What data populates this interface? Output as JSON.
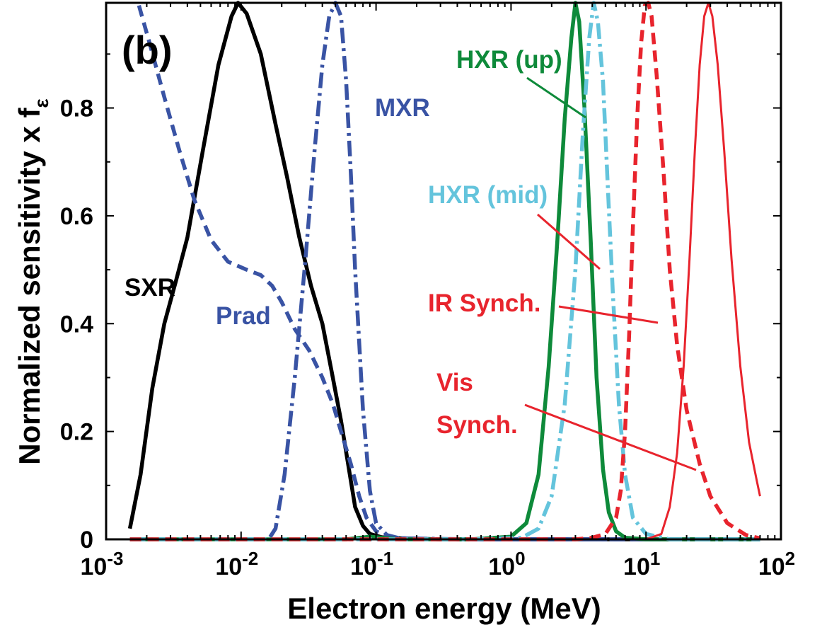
{
  "chart_data": {
    "type": "line",
    "panel_label": "(b)",
    "xlabel": "Electron energy (MeV)",
    "ylabel_main": "Normalized sensitivity x f",
    "ylabel_sub": "ε",
    "x_scale": "log",
    "xlim": [
      0.001,
      100
    ],
    "ylim": [
      0,
      1
    ],
    "x_ticks": [
      {
        "value": 0.001,
        "base": "10",
        "exp": "-3"
      },
      {
        "value": 0.01,
        "base": "10",
        "exp": "-2"
      },
      {
        "value": 0.1,
        "base": "10",
        "exp": "-1"
      },
      {
        "value": 1,
        "base": "10",
        "exp": "0"
      },
      {
        "value": 10,
        "base": "10",
        "exp": "1"
      },
      {
        "value": 100,
        "base": "10",
        "exp": "2"
      }
    ],
    "y_ticks": [
      {
        "value": 0,
        "label": "0"
      },
      {
        "value": 0.2,
        "label": "0.2"
      },
      {
        "value": 0.4,
        "label": "0.4"
      },
      {
        "value": 0.6,
        "label": "0.6"
      },
      {
        "value": 0.8,
        "label": "0.8"
      }
    ],
    "grid": false,
    "series": [
      {
        "name": "SXR",
        "color": "#000000",
        "dash": "solid",
        "x": [
          0.0015,
          0.0018,
          0.0022,
          0.0027,
          0.0033,
          0.004,
          0.0052,
          0.0068,
          0.0085,
          0.0095,
          0.011,
          0.014,
          0.018,
          0.022,
          0.027,
          0.033,
          0.04,
          0.047,
          0.055,
          0.063,
          0.07,
          0.08,
          0.09,
          0.11,
          0.15,
          0.3,
          1,
          5,
          70
        ],
        "y": [
          0.02,
          0.12,
          0.28,
          0.4,
          0.48,
          0.56,
          0.72,
          0.88,
          0.97,
          0.995,
          0.975,
          0.9,
          0.77,
          0.67,
          0.56,
          0.47,
          0.4,
          0.31,
          0.22,
          0.13,
          0.06,
          0.025,
          0.01,
          0.004,
          0.002,
          0.0,
          0.0,
          0.0,
          0.0
        ]
      },
      {
        "name": "Prad",
        "color": "#3953a4",
        "dash": "dashed",
        "x": [
          0.00175,
          0.0021,
          0.0027,
          0.0035,
          0.0045,
          0.006,
          0.008,
          0.011,
          0.014,
          0.017,
          0.02,
          0.025,
          0.032,
          0.04,
          0.048,
          0.055,
          0.065,
          0.075,
          0.085,
          0.1,
          0.12,
          0.15,
          0.3,
          1,
          10,
          70
        ],
        "y": [
          0.99,
          0.92,
          0.82,
          0.72,
          0.63,
          0.555,
          0.515,
          0.5,
          0.49,
          0.47,
          0.44,
          0.39,
          0.35,
          0.3,
          0.25,
          0.2,
          0.14,
          0.08,
          0.04,
          0.015,
          0.005,
          0.002,
          0.0,
          0.0,
          0.0,
          0.0
        ]
      },
      {
        "name": "MXR",
        "color": "#3953a4",
        "dash": "dashdot",
        "x": [
          0.0015,
          0.005,
          0.01,
          0.016,
          0.018,
          0.021,
          0.025,
          0.03,
          0.035,
          0.04,
          0.045,
          0.05,
          0.055,
          0.06,
          0.065,
          0.07,
          0.08,
          0.09,
          0.1,
          0.12,
          0.15,
          0.5,
          70
        ],
        "y": [
          0.0,
          0.0,
          0.0,
          0.0,
          0.02,
          0.12,
          0.3,
          0.52,
          0.72,
          0.88,
          0.97,
          0.995,
          0.97,
          0.85,
          0.68,
          0.5,
          0.24,
          0.09,
          0.03,
          0.008,
          0.002,
          0.0,
          0.0
        ]
      },
      {
        "name": "HXR (up)",
        "color": "#0e8a3a",
        "dash": "solid",
        "x": [
          0.0015,
          0.06,
          0.09,
          0.15,
          0.5,
          1.0,
          1.3,
          1.6,
          1.9,
          2.2,
          2.5,
          2.8,
          3.0,
          3.2,
          3.5,
          3.9,
          4.3,
          4.8,
          5.3,
          6,
          7,
          10,
          70
        ],
        "y": [
          0.0,
          0.0,
          0.005,
          0.0,
          0.0,
          0.005,
          0.03,
          0.12,
          0.32,
          0.55,
          0.78,
          0.93,
          0.995,
          0.96,
          0.8,
          0.55,
          0.3,
          0.13,
          0.05,
          0.015,
          0.003,
          0.0,
          0.0
        ]
      },
      {
        "name": "HXR (mid)",
        "color": "#64c4dc",
        "dash": "dashdot",
        "x": [
          0.0015,
          0.5,
          1.2,
          1.6,
          2.0,
          2.5,
          3.0,
          3.4,
          3.8,
          4.1,
          4.4,
          4.8,
          5.2,
          5.7,
          6.3,
          7,
          8,
          10,
          15,
          70
        ],
        "y": [
          0.0,
          0.0,
          0.003,
          0.02,
          0.08,
          0.25,
          0.5,
          0.75,
          0.93,
          0.995,
          0.96,
          0.85,
          0.66,
          0.45,
          0.25,
          0.12,
          0.04,
          0.01,
          0.0,
          0.0
        ]
      },
      {
        "name": "IR Synch.",
        "color": "#e8242d",
        "dash": "dashed",
        "x": [
          0.0015,
          3,
          4,
          5,
          6,
          6.5,
          7,
          7.5,
          8,
          8.6,
          9.2,
          9.8,
          10.4,
          11,
          12,
          13.5,
          15,
          17,
          20,
          25,
          30,
          40,
          55,
          70
        ],
        "y": [
          0.0,
          0.0,
          0.003,
          0.01,
          0.04,
          0.09,
          0.2,
          0.38,
          0.58,
          0.78,
          0.92,
          0.99,
          0.995,
          0.97,
          0.86,
          0.68,
          0.5,
          0.36,
          0.24,
          0.14,
          0.08,
          0.03,
          0.008,
          0.002
        ]
      },
      {
        "name": "Vis Synch.",
        "color": "#e8242d",
        "dash": "solid",
        "x": [
          0.0015,
          10,
          13,
          15,
          17,
          19,
          21,
          23,
          25,
          27,
          29,
          31,
          34,
          38,
          43,
          50,
          58,
          66,
          70
        ],
        "y": [
          0.0,
          0.0,
          0.01,
          0.06,
          0.16,
          0.32,
          0.52,
          0.72,
          0.88,
          0.97,
          0.995,
          0.97,
          0.88,
          0.72,
          0.52,
          0.32,
          0.18,
          0.11,
          0.08
        ]
      }
    ],
    "annotations": [
      {
        "text": "SXR",
        "color": "#000000"
      },
      {
        "text": "Prad",
        "color": "#3953a4"
      },
      {
        "text": "MXR",
        "color": "#3953a4"
      },
      {
        "text": "HXR (up)",
        "color": "#0e8a3a"
      },
      {
        "text": "HXR (mid)",
        "color": "#64c4dc"
      },
      {
        "text": "IR Synch.",
        "color": "#e8242d"
      },
      {
        "text": "Vis",
        "color": "#e8242d"
      },
      {
        "text": "Synch.",
        "color": "#e8242d"
      }
    ]
  }
}
